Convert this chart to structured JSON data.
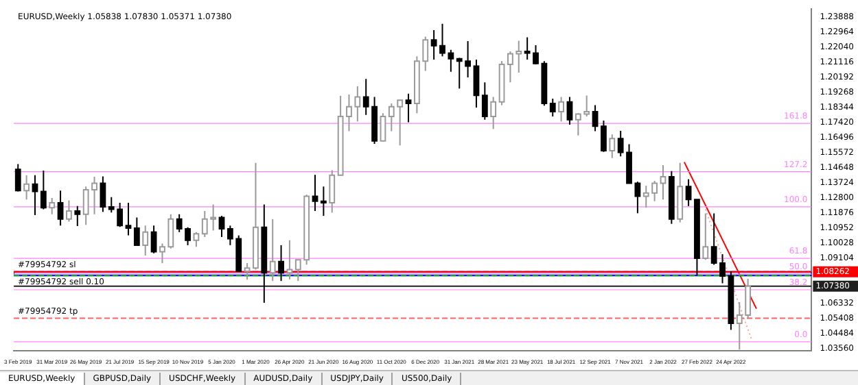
{
  "chart_data": {
    "type": "candlestick",
    "title": "EURUSD,Weekly 1.05838 1.07830 1.05371 1.07380",
    "x": [
      "2019-02-03",
      "2019-02-17",
      "2019-03-03",
      "2019-03-17",
      "2019-03-31",
      "2019-04-14",
      "2019-04-28",
      "2019-05-12",
      "2019-05-26",
      "2019-06-09",
      "2019-06-23",
      "2019-07-07",
      "2019-07-21",
      "2019-08-04",
      "2019-08-18",
      "2019-09-01",
      "2019-09-15",
      "2019-09-29",
      "2019-10-13",
      "2019-10-27",
      "2019-11-10",
      "2019-11-24",
      "2019-12-08",
      "2019-12-22",
      "2020-01-05",
      "2020-01-19",
      "2020-02-02",
      "2020-02-16",
      "2020-03-01",
      "2020-03-15",
      "2020-03-29",
      "2020-04-12",
      "2020-04-26",
      "2020-05-10",
      "2020-05-24",
      "2020-06-07",
      "2020-06-21",
      "2020-07-05",
      "2020-07-19",
      "2020-08-02",
      "2020-08-16",
      "2020-08-30",
      "2020-09-13",
      "2020-09-27",
      "2020-10-11",
      "2020-10-25",
      "2020-11-08",
      "2020-11-22",
      "2020-12-06",
      "2020-12-20",
      "2021-01-03",
      "2021-01-17",
      "2021-01-31",
      "2021-02-14",
      "2021-02-28",
      "2021-03-14",
      "2021-03-28",
      "2021-04-11",
      "2021-04-25",
      "2021-05-09",
      "2021-05-23",
      "2021-06-06",
      "2021-06-20",
      "2021-07-04",
      "2021-07-18",
      "2021-08-01",
      "2021-08-15",
      "2021-08-29",
      "2021-09-12",
      "2021-09-26",
      "2021-10-10",
      "2021-10-24",
      "2021-11-07",
      "2021-11-21",
      "2021-12-05",
      "2021-12-19",
      "2022-01-02",
      "2022-01-16",
      "2022-01-30",
      "2022-02-13",
      "2022-02-27",
      "2022-03-13",
      "2022-03-27",
      "2022-04-10",
      "2022-04-24",
      "2022-05-08",
      "2022-05-22"
    ],
    "ohlc": [
      [
        1.1455,
        1.1488,
        1.132,
        1.1325
      ],
      [
        1.1325,
        1.142,
        1.127,
        1.1365
      ],
      [
        1.1365,
        1.142,
        1.1175,
        1.132
      ],
      [
        1.132,
        1.1448,
        1.121,
        1.122
      ],
      [
        1.122,
        1.128,
        1.118,
        1.125
      ],
      [
        1.125,
        1.1325,
        1.111,
        1.115
      ],
      [
        1.115,
        1.1265,
        1.1135,
        1.12
      ],
      [
        1.12,
        1.123,
        1.1107,
        1.118
      ],
      [
        1.118,
        1.135,
        1.1115,
        1.133
      ],
      [
        1.133,
        1.141,
        1.118,
        1.137
      ],
      [
        1.137,
        1.1412,
        1.1195,
        1.1225
      ],
      [
        1.1225,
        1.1285,
        1.119,
        1.121
      ],
      [
        1.121,
        1.125,
        1.1102,
        1.111
      ],
      [
        1.111,
        1.125,
        1.105,
        1.1095
      ],
      [
        1.1095,
        1.116,
        1.099,
        1.099
      ],
      [
        1.099,
        1.111,
        1.0926,
        1.107
      ],
      [
        1.107,
        1.111,
        1.094,
        1.095
      ],
      [
        1.095,
        1.1,
        1.0879,
        1.098
      ],
      [
        1.098,
        1.118,
        1.097,
        1.115
      ],
      [
        1.115,
        1.118,
        1.107,
        1.109
      ],
      [
        1.109,
        1.11,
        1.099,
        1.102
      ],
      [
        1.102,
        1.107,
        1.098,
        1.106
      ],
      [
        1.106,
        1.12,
        1.104,
        1.115
      ],
      [
        1.115,
        1.124,
        1.108,
        1.116
      ],
      [
        1.116,
        1.117,
        1.104,
        1.109
      ],
      [
        1.109,
        1.111,
        1.099,
        1.103
      ],
      [
        1.103,
        1.105,
        1.083,
        1.083
      ],
      [
        1.083,
        1.088,
        1.0778,
        1.085
      ],
      [
        1.085,
        1.1495,
        1.084,
        1.11
      ],
      [
        1.11,
        1.124,
        1.0636,
        1.082
      ],
      [
        1.082,
        1.115,
        1.077,
        1.089
      ],
      [
        1.089,
        1.099,
        1.077,
        1.082
      ],
      [
        1.082,
        1.102,
        1.078,
        1.084
      ],
      [
        1.084,
        1.09,
        1.077,
        1.09
      ],
      [
        1.09,
        1.13,
        1.087,
        1.129
      ],
      [
        1.129,
        1.1422,
        1.12,
        1.126
      ],
      [
        1.126,
        1.135,
        1.117,
        1.125
      ],
      [
        1.125,
        1.145,
        1.119,
        1.142
      ],
      [
        1.142,
        1.1908,
        1.142,
        1.178
      ],
      [
        1.178,
        1.1915,
        1.169,
        1.184
      ],
      [
        1.184,
        1.1965,
        1.175,
        1.19
      ],
      [
        1.19,
        1.2011,
        1.179,
        1.184
      ],
      [
        1.184,
        1.19,
        1.1612,
        1.163
      ],
      [
        1.163,
        1.18,
        1.163,
        1.178
      ],
      [
        1.178,
        1.186,
        1.169,
        1.184
      ],
      [
        1.184,
        1.188,
        1.1603,
        1.188
      ],
      [
        1.188,
        1.192,
        1.1745,
        1.186
      ],
      [
        1.186,
        1.215,
        1.18,
        1.212
      ],
      [
        1.212,
        1.227,
        1.206,
        1.225
      ],
      [
        1.225,
        1.231,
        1.213,
        1.2215
      ],
      [
        1.2215,
        1.2349,
        1.215,
        1.217
      ],
      [
        1.217,
        1.219,
        1.2055,
        1.2135
      ],
      [
        1.2135,
        1.214,
        1.1952,
        1.212
      ],
      [
        1.212,
        1.2243,
        1.202,
        1.209
      ],
      [
        1.209,
        1.213,
        1.1835,
        1.191
      ],
      [
        1.191,
        1.199,
        1.176,
        1.178
      ],
      [
        1.178,
        1.19,
        1.1704,
        1.187
      ],
      [
        1.187,
        1.212,
        1.185,
        1.21
      ],
      [
        1.21,
        1.218,
        1.199,
        1.2165
      ],
      [
        1.2165,
        1.2245,
        1.205,
        1.218
      ],
      [
        1.218,
        1.2266,
        1.213,
        1.217
      ],
      [
        1.217,
        1.2218,
        1.21,
        1.2105
      ],
      [
        1.2105,
        1.212,
        1.1847,
        1.186
      ],
      [
        1.186,
        1.189,
        1.178,
        1.181
      ],
      [
        1.181,
        1.19,
        1.175,
        1.187
      ],
      [
        1.187,
        1.19,
        1.173,
        1.176
      ],
      [
        1.176,
        1.18,
        1.1664,
        1.1795
      ],
      [
        1.1795,
        1.1909,
        1.178,
        1.181
      ],
      [
        1.181,
        1.185,
        1.169,
        1.172
      ],
      [
        1.172,
        1.1755,
        1.1563,
        1.157
      ],
      [
        1.157,
        1.167,
        1.1525,
        1.1645
      ],
      [
        1.1645,
        1.1692,
        1.1535,
        1.156
      ],
      [
        1.156,
        1.161,
        1.137,
        1.137
      ],
      [
        1.137,
        1.138,
        1.1186,
        1.129
      ],
      [
        1.129,
        1.1355,
        1.122,
        1.131
      ],
      [
        1.131,
        1.1385,
        1.126,
        1.137
      ],
      [
        1.137,
        1.1482,
        1.127,
        1.141
      ],
      [
        1.141,
        1.1445,
        1.1121,
        1.115
      ],
      [
        1.115,
        1.1495,
        1.113,
        1.135
      ],
      [
        1.135,
        1.1395,
        1.123,
        1.127
      ],
      [
        1.127,
        1.127,
        1.0806,
        1.091
      ],
      [
        1.091,
        1.1185,
        1.09,
        1.098
      ],
      [
        1.098,
        1.1185,
        1.087,
        1.088
      ],
      [
        1.088,
        1.0935,
        1.0756,
        1.08
      ],
      [
        1.08,
        1.083,
        1.047,
        1.051
      ],
      [
        1.051,
        1.064,
        1.0349,
        1.056
      ],
      [
        1.056,
        1.0783,
        1.0537,
        1.0738
      ]
    ],
    "series": [
      {
        "type": "line",
        "x": [
          "2022-02-06",
          "2022-06-05"
        ],
        "values": [
          1.15,
          1.06
        ],
        "color": "#ff0000",
        "line_style": "solid"
      },
      {
        "type": "line",
        "x": [
          "2022-03-13",
          "2022-05-29"
        ],
        "values": [
          1.121,
          1.04
        ],
        "color": "#ffa0a0",
        "line_style": "dotted"
      }
    ],
    "xlim": [
      "2019-01-27",
      "2022-09-04"
    ],
    "xticks": [
      {
        "value": "2019-02-03",
        "label": "3 Feb 2019"
      },
      {
        "value": "2019-03-31",
        "label": "31 Mar 2019"
      },
      {
        "value": "2019-05-26",
        "label": "26 May 2019"
      },
      {
        "value": "2019-07-21",
        "label": "21 Jul 2019"
      },
      {
        "value": "2019-09-15",
        "label": "15 Sep 2019"
      },
      {
        "value": "2019-11-10",
        "label": "10 Nov 2019"
      },
      {
        "value": "2020-01-05",
        "label": "5 Jan 2020"
      },
      {
        "value": "2020-03-01",
        "label": "1 Mar 2020"
      },
      {
        "value": "2020-04-26",
        "label": "26 Apr 2020"
      },
      {
        "value": "2020-06-21",
        "label": "21 Jun 2020"
      },
      {
        "value": "2020-08-16",
        "label": "16 Aug 2020"
      },
      {
        "value": "2020-10-11",
        "label": "11 Oct 2020"
      },
      {
        "value": "2020-12-06",
        "label": "6 Dec 2020"
      },
      {
        "value": "2021-01-31",
        "label": "31 Jan 2021"
      },
      {
        "value": "2021-03-28",
        "label": "28 Mar 2021"
      },
      {
        "value": "2021-05-23",
        "label": "23 May 2021"
      },
      {
        "value": "2021-07-18",
        "label": "18 Jul 2021"
      },
      {
        "value": "2021-09-12",
        "label": "12 Sep 2021"
      },
      {
        "value": "2021-11-07",
        "label": "7 Nov 2021"
      },
      {
        "value": "2022-01-02",
        "label": "2 Jan 2022"
      },
      {
        "value": "2022-02-27",
        "label": "27 Feb 2022"
      },
      {
        "value": "2022-04-24",
        "label": "24 Apr 2022"
      }
    ],
    "ylim": [
      1.034,
      1.244
    ],
    "yticks": [
      {
        "value": 1.0356,
        "label": "1.03560"
      },
      {
        "value": 1.04484,
        "label": "1.04484"
      },
      {
        "value": 1.05408,
        "label": "1.05408"
      },
      {
        "value": 1.06332,
        "label": "1.06332"
      },
      {
        "value": 1.09104,
        "label": "1.09104"
      },
      {
        "value": 1.10028,
        "label": "1.10028"
      },
      {
        "value": 1.10952,
        "label": "1.10952"
      },
      {
        "value": 1.11876,
        "label": "1.11876"
      },
      {
        "value": 1.128,
        "label": "1.12800"
      },
      {
        "value": 1.13724,
        "label": "1.13724"
      },
      {
        "value": 1.14648,
        "label": "1.14648"
      },
      {
        "value": 1.15572,
        "label": "1.15572"
      },
      {
        "value": 1.16496,
        "label": "1.16496"
      },
      {
        "value": 1.1742,
        "label": "1.17420"
      },
      {
        "value": 1.18344,
        "label": "1.18344"
      },
      {
        "value": 1.19268,
        "label": "1.19268"
      },
      {
        "value": 1.20192,
        "label": "1.20192"
      },
      {
        "value": 1.21116,
        "label": "1.21116"
      },
      {
        "value": 1.2204,
        "label": "1.22040"
      },
      {
        "value": 1.22964,
        "label": "1.22964"
      },
      {
        "value": 1.23888,
        "label": "1.23888"
      }
    ],
    "ref_lines": [
      {
        "axis": "y",
        "value": 1.08262,
        "label": "#79954792 sl",
        "color": "#ff0000",
        "line_style": "dashed"
      },
      {
        "axis": "y",
        "value": 1.0803,
        "label": "#79954792 sell 0.10",
        "color": "#00c000",
        "line_style": "dashed"
      },
      {
        "axis": "y",
        "value": 1.0541,
        "label": "#79954792 tp",
        "color": "#ff6060",
        "line_style": "dashed"
      },
      {
        "axis": "y",
        "value": 1.08262,
        "label": "1.08262",
        "color": "#ff0000",
        "line_style": "solid"
      },
      {
        "axis": "y",
        "value": 1.0738,
        "label": "1.07380",
        "color": "#202020",
        "line_style": "solid"
      },
      {
        "axis": "y",
        "value": 1.1738,
        "color": "#ff80ff",
        "line_style": "solid"
      },
      {
        "axis": "y",
        "value": 1.1441,
        "color": "#ff80ff",
        "line_style": "solid"
      },
      {
        "axis": "y",
        "value": 1.1226,
        "color": "#ff80ff",
        "line_style": "solid"
      },
      {
        "axis": "y",
        "value": 1.0909,
        "color": "#ff80ff",
        "line_style": "solid"
      },
      {
        "axis": "y",
        "value": 1.0812,
        "color": "#ff80ff",
        "line_style": "solid"
      },
      {
        "axis": "y",
        "value": 1.0716,
        "color": "#ff80ff",
        "line_style": "solid"
      },
      {
        "axis": "y",
        "value": 1.0397,
        "color": "#ff80ff",
        "line_style": "solid"
      }
    ],
    "bands": [
      {
        "axis": "y",
        "from": 1.0803,
        "to": 1.08262,
        "color": "#0000ff"
      }
    ],
    "annotations": [
      {
        "text": "161.8",
        "x": "2022-09-04",
        "y": 1.1738
      },
      {
        "text": "127.2",
        "x": "2022-09-04",
        "y": 1.1441
      },
      {
        "text": "100.0",
        "x": "2022-09-04",
        "y": 1.1226
      },
      {
        "text": "61.8",
        "x": "2022-09-04",
        "y": 1.0909
      },
      {
        "text": "50.0",
        "x": "2022-09-04",
        "y": 1.0812
      },
      {
        "text": "38.2",
        "x": "2022-09-04",
        "y": 1.0716
      },
      {
        "text": "0.0",
        "x": "2022-09-04",
        "y": 1.0397
      },
      "EURUSD,Weekly",
      "GBPUSD,Daily",
      "USDCHF,Weekly",
      "AUDUSD,Daily",
      "USDJPY,Daily",
      "US500,Daily"
    ]
  }
}
